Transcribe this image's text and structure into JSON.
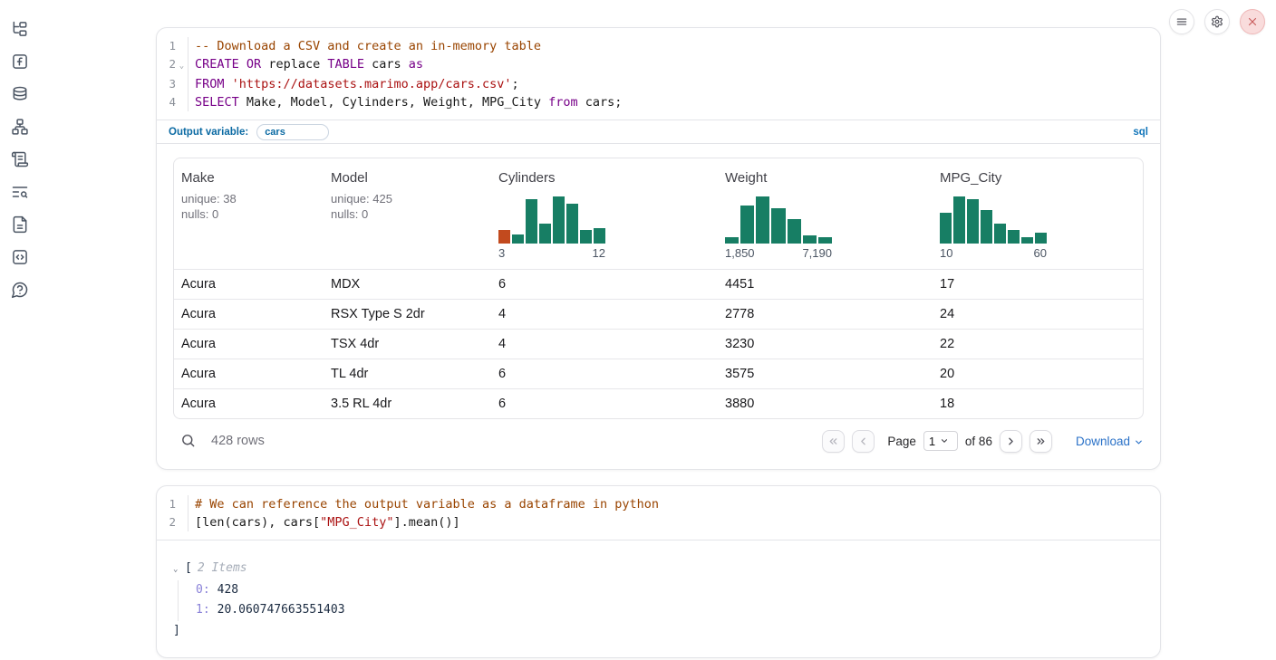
{
  "colors": {
    "accent_blue": "#0b6aa3",
    "sql_badge_blue": "#1376ba",
    "link_blue": "#2b72c8",
    "hist_green": "#177e64",
    "hist_orange": "#c24a1e",
    "code_keyword": "#770088",
    "code_comment": "#994400",
    "code_string": "#aa1111",
    "tree_key_purple": "#8981d8"
  },
  "sidebar": {
    "items": [
      {
        "icon": "file-tree-icon"
      },
      {
        "icon": "functions-icon"
      },
      {
        "icon": "datasources-icon"
      },
      {
        "icon": "dependency-graph-icon"
      },
      {
        "icon": "logs-icon"
      },
      {
        "icon": "scratchpad-search-icon"
      },
      {
        "icon": "documentation-icon"
      },
      {
        "icon": "snippets-icon"
      },
      {
        "icon": "help-icon"
      }
    ]
  },
  "topbar": {
    "buttons": [
      "menu",
      "settings",
      "shutdown"
    ]
  },
  "cells": [
    {
      "language": "sql",
      "code": [
        {
          "n": "1",
          "spans": [
            [
              "cm",
              "-- Download a CSV and create an in-memory table"
            ]
          ]
        },
        {
          "n": "2",
          "fold": true,
          "spans": [
            [
              "kw",
              "CREATE"
            ],
            [
              "pl",
              " "
            ],
            [
              "kw",
              "OR"
            ],
            [
              "pl",
              " replace "
            ],
            [
              "kw",
              "TABLE"
            ],
            [
              "pl",
              " cars "
            ],
            [
              "kw",
              "as"
            ]
          ]
        },
        {
          "n": "3",
          "spans": [
            [
              "kw",
              "FROM"
            ],
            [
              "pl",
              " "
            ],
            [
              "st",
              "'https://datasets.marimo.app/cars.csv'"
            ],
            [
              "pl",
              ";"
            ]
          ]
        },
        {
          "n": "4",
          "spans": [
            [
              "kw",
              "SELECT"
            ],
            [
              "pl",
              " Make, Model, Cylinders, Weight, MPG_City "
            ],
            [
              "kw",
              "from"
            ],
            [
              "pl",
              " cars;"
            ]
          ]
        }
      ],
      "output_variable": {
        "label": "Output variable:",
        "value": "cars",
        "badge": "sql"
      }
    },
    {
      "language": "python",
      "code": [
        {
          "n": "1",
          "spans": [
            [
              "cm",
              "# We can reference the output variable as a dataframe in python"
            ]
          ]
        },
        {
          "n": "2",
          "spans": [
            [
              "pl",
              "[len(cars), cars["
            ],
            [
              "st",
              "\"MPG_City\""
            ],
            [
              "pl",
              "].mean()]"
            ]
          ]
        }
      ]
    }
  ],
  "table": {
    "columns": [
      {
        "name": "Make",
        "unique": "unique: 38",
        "nulls": "nulls: 0"
      },
      {
        "name": "Model",
        "unique": "unique: 425",
        "nulls": "nulls: 0"
      },
      {
        "name": "Cylinders",
        "hist": {
          "values": [
            0.28,
            0.19,
            0.94,
            0.43,
            1.0,
            0.85,
            0.28,
            0.32
          ],
          "first_bar_color": "#c24a1e",
          "min": "3",
          "max": "12"
        }
      },
      {
        "name": "Weight",
        "hist": {
          "values": [
            0.13,
            0.8,
            1.0,
            0.75,
            0.52,
            0.18,
            0.13
          ],
          "min": "1,850",
          "max": "7,190"
        }
      },
      {
        "name": "MPG_City",
        "hist": {
          "values": [
            0.65,
            1.0,
            0.94,
            0.72,
            0.43,
            0.29,
            0.14,
            0.24
          ],
          "min": "10",
          "max": "60"
        }
      }
    ],
    "rows": [
      [
        "Acura",
        "MDX",
        "6",
        "4451",
        "17"
      ],
      [
        "Acura",
        "RSX Type S 2dr",
        "4",
        "2778",
        "24"
      ],
      [
        "Acura",
        "TSX 4dr",
        "4",
        "3230",
        "22"
      ],
      [
        "Acura",
        "TL 4dr",
        "6",
        "3575",
        "20"
      ],
      [
        "Acura",
        "3.5 RL 4dr",
        "6",
        "3880",
        "18"
      ]
    ],
    "footer": {
      "row_count": "428 rows",
      "page_label": "Page",
      "page_value": "1",
      "of_label": "of 86",
      "download_label": "Download"
    }
  },
  "tree_output": {
    "bracket_open": "[",
    "items_count_label": "2 Items",
    "items": [
      {
        "key": "0:",
        "value": "428"
      },
      {
        "key": "1:",
        "value": "20.060747663551403"
      }
    ],
    "bracket_close": "]"
  }
}
